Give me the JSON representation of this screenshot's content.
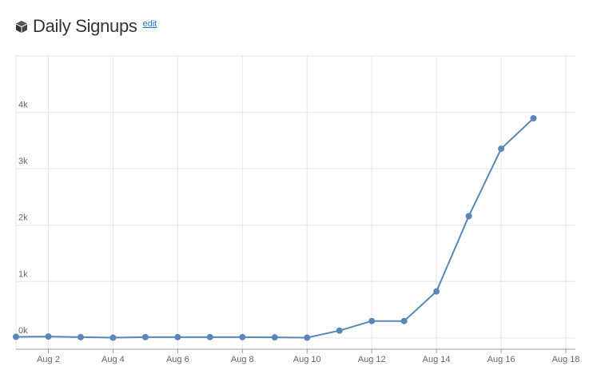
{
  "edit_link": "edit",
  "chart_data": {
    "type": "line",
    "title": "Daily Signups",
    "x": [
      "Aug 1",
      "Aug 2",
      "Aug 3",
      "Aug 4",
      "Aug 5",
      "Aug 6",
      "Aug 7",
      "Aug 8",
      "Aug 9",
      "Aug 10",
      "Aug 11",
      "Aug 12",
      "Aug 13",
      "Aug 14",
      "Aug 15",
      "Aug 16",
      "Aug 17"
    ],
    "series": [
      {
        "name": "Signups",
        "color": "#5a86b8",
        "values": [
          20,
          25,
          15,
          5,
          15,
          15,
          15,
          15,
          10,
          5,
          130,
          300,
          300,
          825,
          2160,
          3355,
          3895
        ]
      }
    ],
    "xlim": [
      "Aug 1",
      "Aug 18"
    ],
    "xticks": [
      "Aug 2",
      "Aug 4",
      "Aug 6",
      "Aug 8",
      "Aug 10",
      "Aug 12",
      "Aug 14",
      "Aug 16",
      "Aug 18"
    ],
    "ylim": [
      -200,
      5000
    ],
    "yticks": [
      {
        "value": 0,
        "label": "0k"
      },
      {
        "value": 1000,
        "label": "1k"
      },
      {
        "value": 2000,
        "label": "2k"
      },
      {
        "value": 3000,
        "label": "3k"
      },
      {
        "value": 4000,
        "label": "4k"
      }
    ],
    "grid": true
  }
}
